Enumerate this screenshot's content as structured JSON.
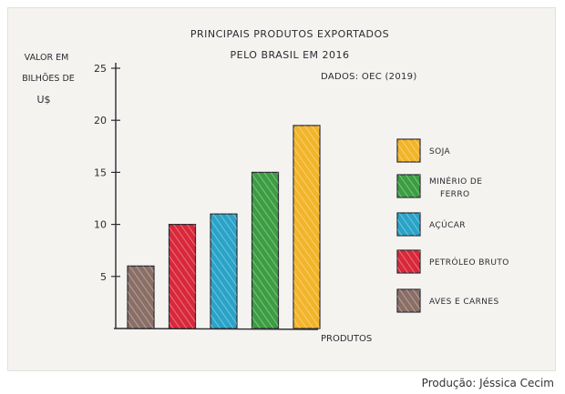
{
  "caption": "Produção: Jéssica Cecim",
  "chart_data": {
    "type": "bar",
    "title_line1": "PRINCIPAIS PRODUTOS EXPORTADOS",
    "title_line2": "PELO BRASIL EM 2016",
    "source": "DADOS: OEC (2019)",
    "ylabel_line1": "VALOR EM",
    "ylabel_line2": "BILHÕES DE",
    "ylabel_line3": "U$",
    "xlabel": "PRODUTOS",
    "ylim": [
      0,
      25
    ],
    "yticks": [
      "5",
      "10",
      "15",
      "20",
      "25"
    ],
    "grid": false,
    "legend_position": "right",
    "categories": [
      "AVES E CARNES",
      "PETRÓLEO BRUTO",
      "AÇÚCAR",
      "MINÉRIO DE FERRO",
      "SOJA"
    ],
    "values": [
      6,
      10,
      11,
      15,
      19.5
    ],
    "colors": [
      "#8a6f66",
      "#d8283a",
      "#2aa3c8",
      "#3c9e42",
      "#f2b429"
    ],
    "legend": [
      {
        "label_line1": "SOJA",
        "label_line2": "",
        "color": "#f2b429"
      },
      {
        "label_line1": "MINÉRIO DE",
        "label_line2": "FERRO",
        "color": "#3c9e42"
      },
      {
        "label_line1": "AÇÚCAR",
        "label_line2": "",
        "color": "#2aa3c8"
      },
      {
        "label_line1": "PETRÓLEO BRUTO",
        "label_line2": "",
        "color": "#d8283a"
      },
      {
        "label_line1": "AVES E CARNES",
        "label_line2": "",
        "color": "#8a6f66"
      }
    ]
  }
}
